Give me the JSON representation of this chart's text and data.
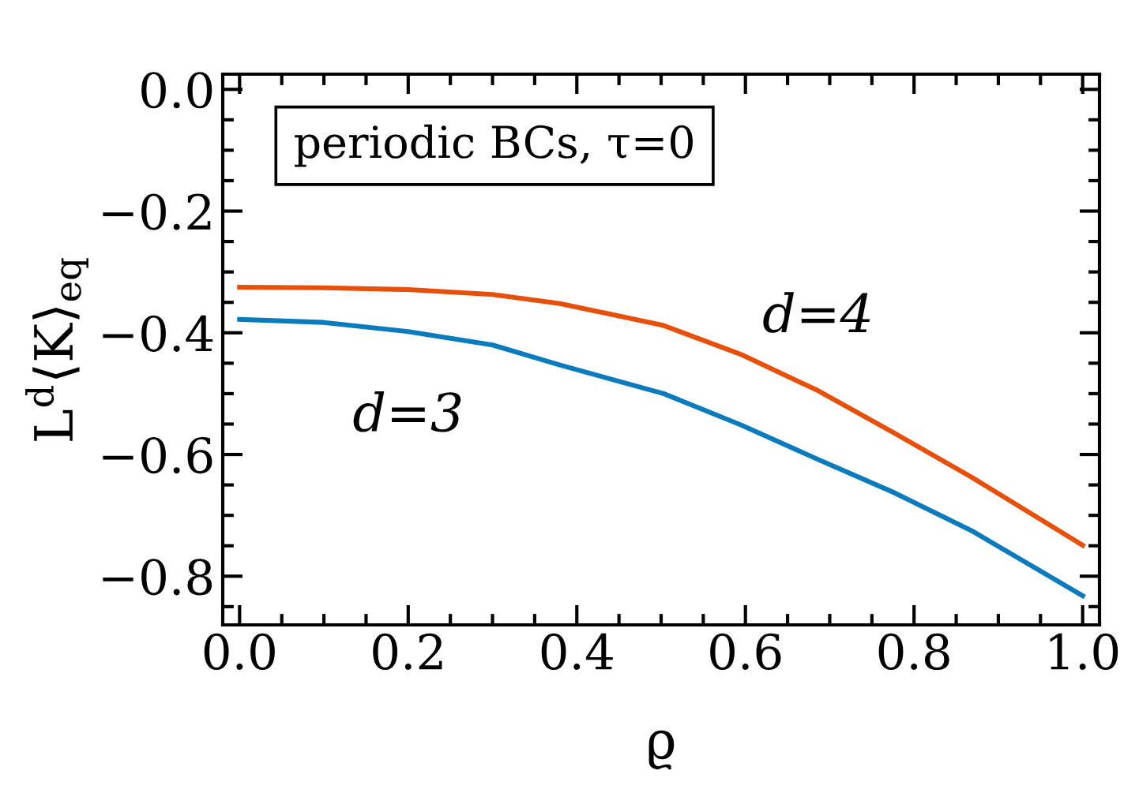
{
  "chart_data": {
    "type": "line",
    "xlabel": "ϱ",
    "ylabel": "L$^{d}$⟨K⟩$_{eq}$",
    "xlim": [
      -0.02,
      1.02
    ],
    "ylim": [
      -0.88,
      0.025
    ],
    "xticks": [
      {
        "value": 0,
        "label": "0.0"
      },
      0.2,
      0.4,
      0.6,
      0.8,
      {
        "value": 1,
        "label": "1.0"
      }
    ],
    "yticks": [
      {
        "value": -0.8,
        "label": "−0.8"
      },
      {
        "value": -0.6,
        "label": "−0.6"
      },
      {
        "value": -0.4,
        "label": "−0.4"
      },
      {
        "value": -0.2,
        "label": "−0.2"
      },
      {
        "value": 0,
        "label": "0.0"
      }
    ],
    "grid": false,
    "legend": false,
    "marker": "none",
    "line_style": "solid",
    "x": [
      0,
      0.1,
      0.2,
      0.3,
      0.38,
      0.503,
      0.594,
      0.686,
      0.777,
      0.868,
      1.0
    ],
    "series": [
      {
        "name": "d=4",
        "color": "#e8500a",
        "values": [
          -0.325,
          -0.326,
          -0.329,
          -0.337,
          -0.352,
          -0.388,
          -0.435,
          -0.495,
          -0.565,
          -0.637,
          -0.749
        ]
      },
      {
        "name": "d=3",
        "color": "#0a7bbd",
        "values": [
          -0.378,
          -0.383,
          -0.398,
          -0.42,
          -0.453,
          -0.5,
          -0.551,
          -0.608,
          -0.663,
          -0.725,
          -0.832
        ]
      }
    ],
    "annotations": [
      "periodic BCs, τ=0"
    ]
  }
}
